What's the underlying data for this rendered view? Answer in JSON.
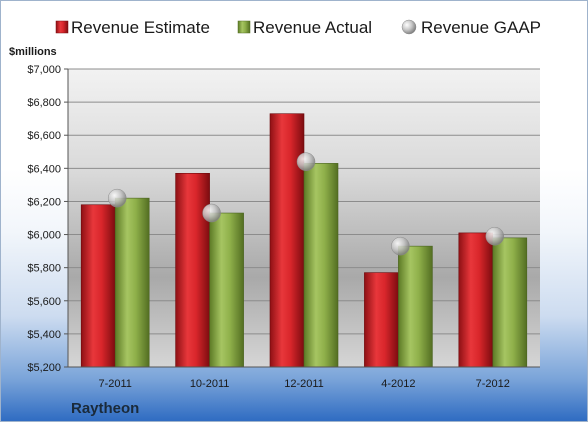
{
  "chart_data": {
    "type": "bar",
    "unit_label": "$millions",
    "company": "Raytheon",
    "categories": [
      "7-2011",
      "10-2011",
      "12-2011",
      "4-2012",
      "7-2012"
    ],
    "series": [
      {
        "name": "Revenue Estimate",
        "kind": "bar",
        "color": "#d9262b",
        "values": [
          6180,
          6370,
          6730,
          5770,
          6010
        ]
      },
      {
        "name": "Revenue Actual",
        "kind": "bar",
        "color": "#8fb04a",
        "values": [
          6220,
          6130,
          6430,
          5930,
          5980
        ]
      },
      {
        "name": "Revenue GAAP",
        "kind": "marker",
        "color": "#c8c8c8",
        "values": [
          6220,
          6130,
          6440,
          5930,
          5990
        ]
      }
    ],
    "ylim": [
      5200,
      7000
    ],
    "yticks": [
      5200,
      5400,
      5600,
      5800,
      6000,
      6200,
      6400,
      6600,
      6800,
      7000
    ],
    "ytick_labels": [
      "$5,200",
      "$5,400",
      "$5,600",
      "$5,800",
      "$6,000",
      "$6,200",
      "$6,400",
      "$6,600",
      "$6,800",
      "$7,000"
    ],
    "grid": true,
    "legend": "top"
  }
}
